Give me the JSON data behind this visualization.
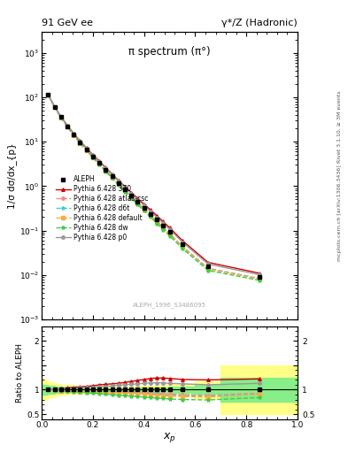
{
  "title_left": "91 GeV ee",
  "title_right": "γ*/Z (Hadronic)",
  "plot_title": "π spectrum (π°)",
  "xlabel": "x_{p}",
  "ylabel_main": "1/σ dσ/dx_{p}",
  "ylabel_ratio": "Ratio to ALEPH",
  "right_label_1": "Rivet 3.1.10, ≥ 3M events",
  "right_label_2": "mcplots.cern.ch [arXiv:1306.3436]",
  "ref_label": "ALEPH_1996_S3486095",
  "legend": [
    "ALEPH",
    "Pythia 6.428 370",
    "Pythia 6.428 atlas-csc",
    "Pythia 6.428 d6t",
    "Pythia 6.428 default",
    "Pythia 6.428 dw",
    "Pythia 6.428 p0"
  ],
  "xp_data": [
    0.025,
    0.05,
    0.075,
    0.1,
    0.125,
    0.15,
    0.175,
    0.2,
    0.225,
    0.25,
    0.275,
    0.3,
    0.325,
    0.35,
    0.375,
    0.4,
    0.425,
    0.45,
    0.475,
    0.5,
    0.55,
    0.65,
    0.85
  ],
  "aleph_y": [
    114,
    61,
    36,
    22.5,
    14.5,
    9.8,
    6.7,
    4.7,
    3.35,
    2.35,
    1.67,
    1.19,
    0.855,
    0.615,
    0.447,
    0.325,
    0.238,
    0.174,
    0.128,
    0.094,
    0.049,
    0.016,
    0.009
  ],
  "xp_bins": [
    0.0,
    0.025,
    0.05,
    0.075,
    0.1,
    0.125,
    0.15,
    0.175,
    0.2,
    0.225,
    0.25,
    0.275,
    0.3,
    0.325,
    0.35,
    0.375,
    0.4,
    0.425,
    0.45,
    0.475,
    0.5,
    0.6,
    0.7,
    1.0
  ],
  "aleph_err_yellow": [
    0.2,
    0.16,
    0.12,
    0.1,
    0.09,
    0.08,
    0.07,
    0.07,
    0.065,
    0.06,
    0.06,
    0.06,
    0.06,
    0.065,
    0.07,
    0.075,
    0.08,
    0.085,
    0.09,
    0.1,
    0.12,
    0.18,
    0.5
  ],
  "aleph_err_green": [
    0.1,
    0.08,
    0.06,
    0.05,
    0.045,
    0.04,
    0.035,
    0.035,
    0.033,
    0.03,
    0.03,
    0.03,
    0.03,
    0.033,
    0.035,
    0.038,
    0.04,
    0.043,
    0.045,
    0.05,
    0.06,
    0.09,
    0.25
  ],
  "py370_ratio": [
    1.0,
    1.01,
    1.02,
    1.04,
    1.05,
    1.06,
    1.07,
    1.08,
    1.1,
    1.11,
    1.12,
    1.13,
    1.15,
    1.17,
    1.19,
    1.21,
    1.23,
    1.24,
    1.24,
    1.23,
    1.21,
    1.2,
    1.22
  ],
  "pyatlas_ratio": [
    1.0,
    0.99,
    0.98,
    0.98,
    0.97,
    0.97,
    0.96,
    0.96,
    0.96,
    0.95,
    0.95,
    0.95,
    0.95,
    0.95,
    0.95,
    0.95,
    0.94,
    0.93,
    0.92,
    0.91,
    0.9,
    0.89,
    0.93
  ],
  "pyd6t_ratio": [
    1.0,
    0.99,
    0.98,
    0.97,
    0.97,
    0.96,
    0.96,
    0.96,
    0.95,
    0.95,
    0.95,
    0.95,
    0.95,
    0.95,
    0.94,
    0.93,
    0.92,
    0.91,
    0.9,
    0.89,
    0.88,
    0.87,
    0.91
  ],
  "pydef_ratio": [
    1.0,
    0.99,
    0.98,
    0.97,
    0.97,
    0.96,
    0.96,
    0.95,
    0.95,
    0.94,
    0.94,
    0.94,
    0.93,
    0.93,
    0.92,
    0.91,
    0.9,
    0.89,
    0.88,
    0.87,
    0.86,
    0.85,
    0.9
  ],
  "pydw_ratio": [
    1.0,
    0.99,
    0.98,
    0.97,
    0.96,
    0.95,
    0.94,
    0.93,
    0.92,
    0.91,
    0.9,
    0.89,
    0.88,
    0.87,
    0.86,
    0.85,
    0.84,
    0.83,
    0.82,
    0.81,
    0.8,
    0.79,
    0.84
  ],
  "pyp0_ratio": [
    1.0,
    1.01,
    1.02,
    1.02,
    1.03,
    1.04,
    1.04,
    1.05,
    1.06,
    1.07,
    1.08,
    1.09,
    1.1,
    1.11,
    1.12,
    1.13,
    1.14,
    1.14,
    1.14,
    1.13,
    1.12,
    1.1,
    1.13
  ],
  "color_370": "#cc0000",
  "color_atlas": "#ff8888",
  "color_d6t": "#44cccc",
  "color_default": "#ffaa44",
  "color_dw": "#44cc44",
  "color_p0": "#999999",
  "color_aleph": "#000000",
  "bg_yellow": "#ffff88",
  "bg_green": "#88ee88",
  "ylim_main": [
    0.001,
    3000
  ],
  "ylim_ratio": [
    0.4,
    2.3
  ],
  "yticks_ratio": [
    0.5,
    1.0,
    1.5,
    2.0
  ],
  "ytick_labels_ratio_left": [
    "0.5",
    "1",
    "",
    "2"
  ],
  "ytick_labels_ratio_right": [
    "0.5",
    "1",
    "",
    "2"
  ],
  "xlim": [
    0.0,
    1.0
  ]
}
